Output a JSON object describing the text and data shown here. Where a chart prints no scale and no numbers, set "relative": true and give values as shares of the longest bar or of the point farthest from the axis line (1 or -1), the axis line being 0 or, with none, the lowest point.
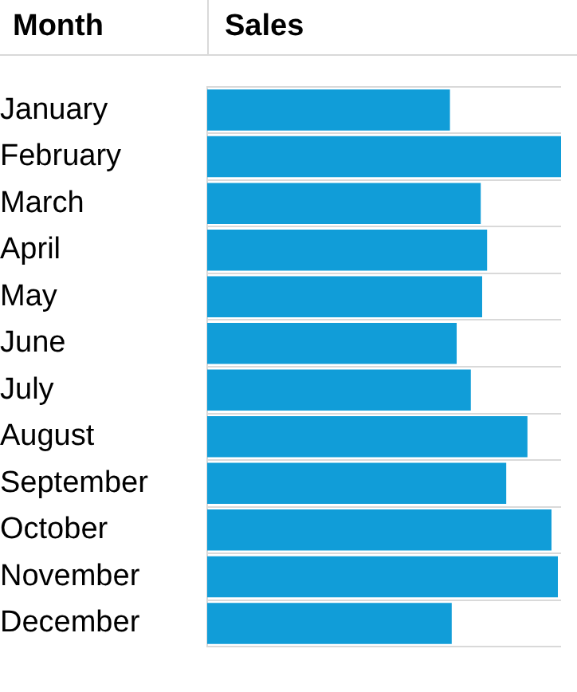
{
  "chart_data": {
    "type": "bar",
    "orientation": "horizontal",
    "relative": true,
    "ylabel": "Month",
    "xlabel": "Sales",
    "categories": [
      "January",
      "February",
      "March",
      "April",
      "May",
      "June",
      "July",
      "August",
      "September",
      "October",
      "November",
      "December"
    ],
    "series": [
      {
        "color": "#119dd8",
        "values": [
          0.686,
          1,
          0.773,
          0.791,
          0.777,
          0.705,
          0.745,
          0.905,
          0.845,
          0.973,
          0.991,
          0.691
        ]
      }
    ],
    "grid": "y",
    "legend": false
  }
}
